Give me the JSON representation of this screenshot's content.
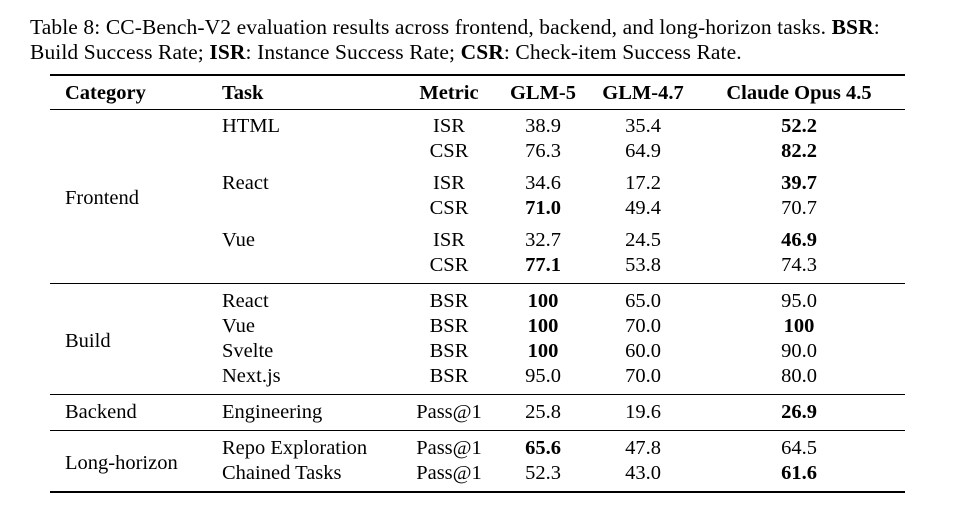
{
  "colors": {
    "background": "#ffffff",
    "text": "#000000",
    "rule": "#000000"
  },
  "caption": {
    "line1": [
      {
        "text": "Table 8: CC-Bench-V2 evaluation results across frontend, backend, and long-horizon tasks. ",
        "bold": false
      },
      {
        "text": "BSR",
        "bold": true
      },
      {
        "text": ":",
        "bold": false
      }
    ],
    "line2": [
      {
        "text": "Build Success Rate; ",
        "bold": false
      },
      {
        "text": "ISR",
        "bold": true
      },
      {
        "text": ": Instance Success Rate; ",
        "bold": false
      },
      {
        "text": "CSR",
        "bold": true
      },
      {
        "text": ": Check-item Success Rate.",
        "bold": false
      }
    ]
  },
  "table": {
    "columns": [
      "Category",
      "Task",
      "Metric",
      "GLM-5",
      "GLM-4.7",
      "Claude Opus 4.5"
    ],
    "sections": [
      {
        "category": "Frontend",
        "rows": [
          {
            "task": "HTML",
            "metric": "ISR",
            "glm5": "38.9",
            "glm5_bold": false,
            "glm47": "35.4",
            "glm47_bold": false,
            "opus": "52.2",
            "opus_bold": true
          },
          {
            "task": "",
            "metric": "CSR",
            "glm5": "76.3",
            "glm5_bold": false,
            "glm47": "64.9",
            "glm47_bold": false,
            "opus": "82.2",
            "opus_bold": true
          },
          {
            "task": "React",
            "metric": "ISR",
            "glm5": "34.6",
            "glm5_bold": false,
            "glm47": "17.2",
            "glm47_bold": false,
            "opus": "39.7",
            "opus_bold": true
          },
          {
            "task": "",
            "metric": "CSR",
            "glm5": "71.0",
            "glm5_bold": true,
            "glm47": "49.4",
            "glm47_bold": false,
            "opus": "70.7",
            "opus_bold": false
          },
          {
            "task": "Vue",
            "metric": "ISR",
            "glm5": "32.7",
            "glm5_bold": false,
            "glm47": "24.5",
            "glm47_bold": false,
            "opus": "46.9",
            "opus_bold": true
          },
          {
            "task": "",
            "metric": "CSR",
            "glm5": "77.1",
            "glm5_bold": true,
            "glm47": "53.8",
            "glm47_bold": false,
            "opus": "74.3",
            "opus_bold": false
          }
        ]
      },
      {
        "category": "Build",
        "rows": [
          {
            "task": "React",
            "metric": "BSR",
            "glm5": "100",
            "glm5_bold": true,
            "glm47": "65.0",
            "glm47_bold": false,
            "opus": "95.0",
            "opus_bold": false
          },
          {
            "task": "Vue",
            "metric": "BSR",
            "glm5": "100",
            "glm5_bold": true,
            "glm47": "70.0",
            "glm47_bold": false,
            "opus": "100",
            "opus_bold": true
          },
          {
            "task": "Svelte",
            "metric": "BSR",
            "glm5": "100",
            "glm5_bold": true,
            "glm47": "60.0",
            "glm47_bold": false,
            "opus": "90.0",
            "opus_bold": false
          },
          {
            "task": "Next.js",
            "metric": "BSR",
            "glm5": "95.0",
            "glm5_bold": false,
            "glm47": "70.0",
            "glm47_bold": false,
            "opus": "80.0",
            "opus_bold": false
          }
        ]
      },
      {
        "category": "Backend",
        "rows": [
          {
            "task": "Engineering",
            "metric": "Pass@1",
            "glm5": "25.8",
            "glm5_bold": false,
            "glm47": "19.6",
            "glm47_bold": false,
            "opus": "26.9",
            "opus_bold": true
          }
        ]
      },
      {
        "category": "Long-horizon",
        "rows": [
          {
            "task": "Repo Exploration",
            "metric": "Pass@1",
            "glm5": "65.6",
            "glm5_bold": true,
            "glm47": "47.8",
            "glm47_bold": false,
            "opus": "64.5",
            "opus_bold": false
          },
          {
            "task": "Chained Tasks",
            "metric": "Pass@1",
            "glm5": "52.3",
            "glm5_bold": false,
            "glm47": "43.0",
            "glm47_bold": false,
            "opus": "61.6",
            "opus_bold": true
          }
        ]
      }
    ]
  }
}
